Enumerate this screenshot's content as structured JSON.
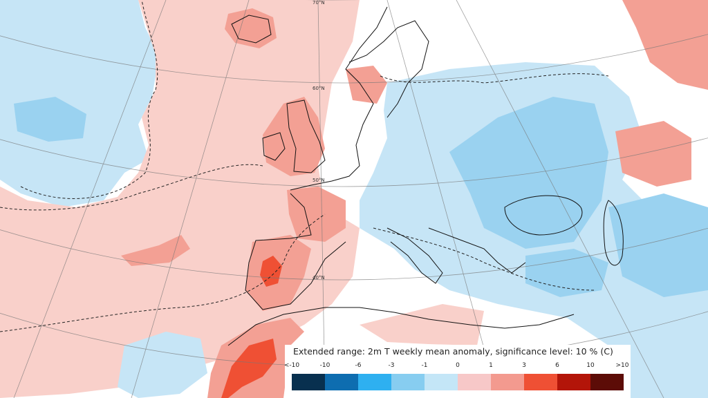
{
  "map": {
    "legend": {
      "title": "Extended range: 2m T weekly mean anomaly, significance level: 10 % (C)",
      "ticks": [
        "<-10",
        "-10",
        "-6",
        "-3",
        "-1",
        "0",
        "1",
        "3",
        "6",
        "10",
        ">10"
      ],
      "colors": [
        "#08304f",
        "#0e6db0",
        "#2eb0f0",
        "#87cdf0",
        "#c4e6f7",
        "#f7c8c8",
        "#f39a8f",
        "#ef5034",
        "#b31509",
        "#5c0c07"
      ]
    },
    "latitude_labels": [
      "70°N",
      "60°N",
      "50°N",
      "40°N"
    ],
    "colors": {
      "neutral": "#ffffff",
      "warm_light": "#f9d0ca",
      "warm_mid": "#f3a094",
      "warm_strong": "#ef5034",
      "cold_light": "#c6e5f6",
      "cold_mid": "#9ad2f0"
    }
  }
}
